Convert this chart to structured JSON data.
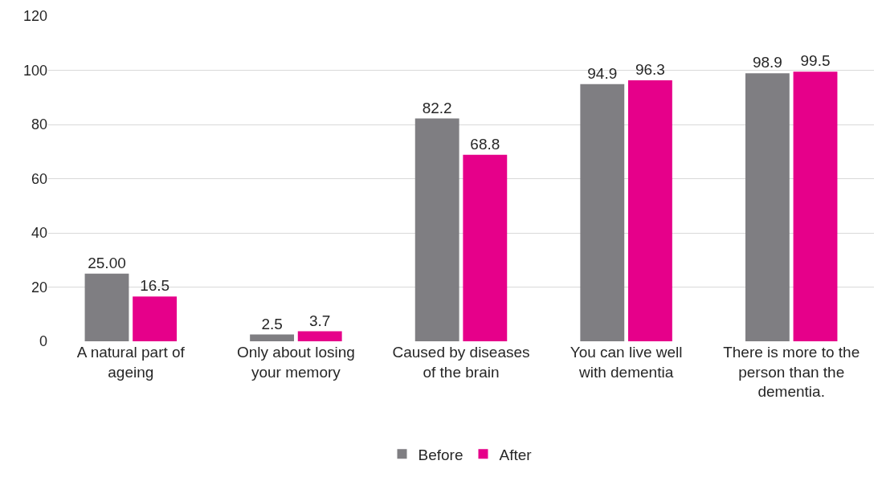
{
  "chart_data": {
    "type": "bar",
    "categories": [
      "A natural part of ageing",
      "Only about losing your memory",
      "Caused by diseases of the brain",
      "You can live well with dementia",
      "There is more to the person than the dementia."
    ],
    "series": [
      {
        "name": "Before",
        "color": "#7f7e82",
        "values": [
          25,
          2.5,
          82.2,
          94.9,
          98.9
        ],
        "value_labels": [
          "25.00",
          "2.5",
          "82.2",
          "94.9",
          "98.9"
        ]
      },
      {
        "name": "After",
        "color": "#e6008a",
        "values": [
          16.5,
          3.7,
          68.8,
          96.3,
          99.5
        ],
        "value_labels": [
          "16.5",
          "3.7",
          "68.8",
          "96.3",
          "99.5"
        ]
      }
    ],
    "ylim": [
      0,
      120
    ],
    "yticks": [
      0,
      20,
      40,
      60,
      80,
      100,
      120
    ],
    "grid": "y",
    "legend": "bottom"
  }
}
